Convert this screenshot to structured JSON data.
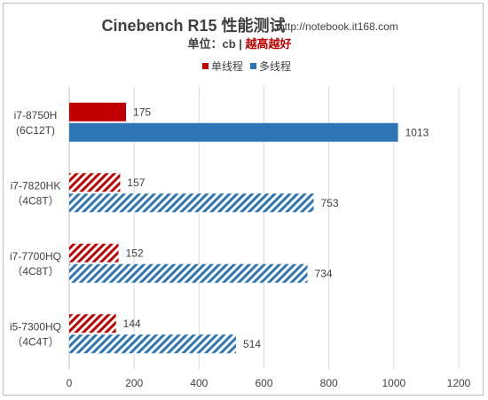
{
  "chart_data": {
    "type": "bar",
    "orientation": "horizontal",
    "title": "Cinebench R15 性能测试",
    "source": "http://notebook.it168.com",
    "subtitle_prefix": "单位：cb | ",
    "subtitle_highlight": "越高越好",
    "categories": [
      [
        "i7-8750H",
        "(6C12T)"
      ],
      [
        "i7-7820HK",
        "（4C8T）"
      ],
      [
        "i7-7700HQ",
        "（4C8T）"
      ],
      [
        "i5-7300HQ",
        "（4C4T）"
      ]
    ],
    "series": [
      {
        "name": "单线程",
        "values": [
          175,
          157,
          152,
          144
        ]
      },
      {
        "name": "多线程",
        "values": [
          1013,
          753,
          734,
          514
        ]
      }
    ],
    "solid_categories": [
      0
    ],
    "xlim": [
      0,
      1200
    ],
    "xticks": [
      0,
      200,
      400,
      600,
      800,
      1000,
      1200
    ],
    "grid": true,
    "legend_position": "top-center",
    "colors": {
      "single": "#c00000",
      "multi": "#2e75b6",
      "highlight": "#c00000",
      "grid": "#d9d9d9",
      "text": "#404040",
      "title": "#404040"
    }
  }
}
